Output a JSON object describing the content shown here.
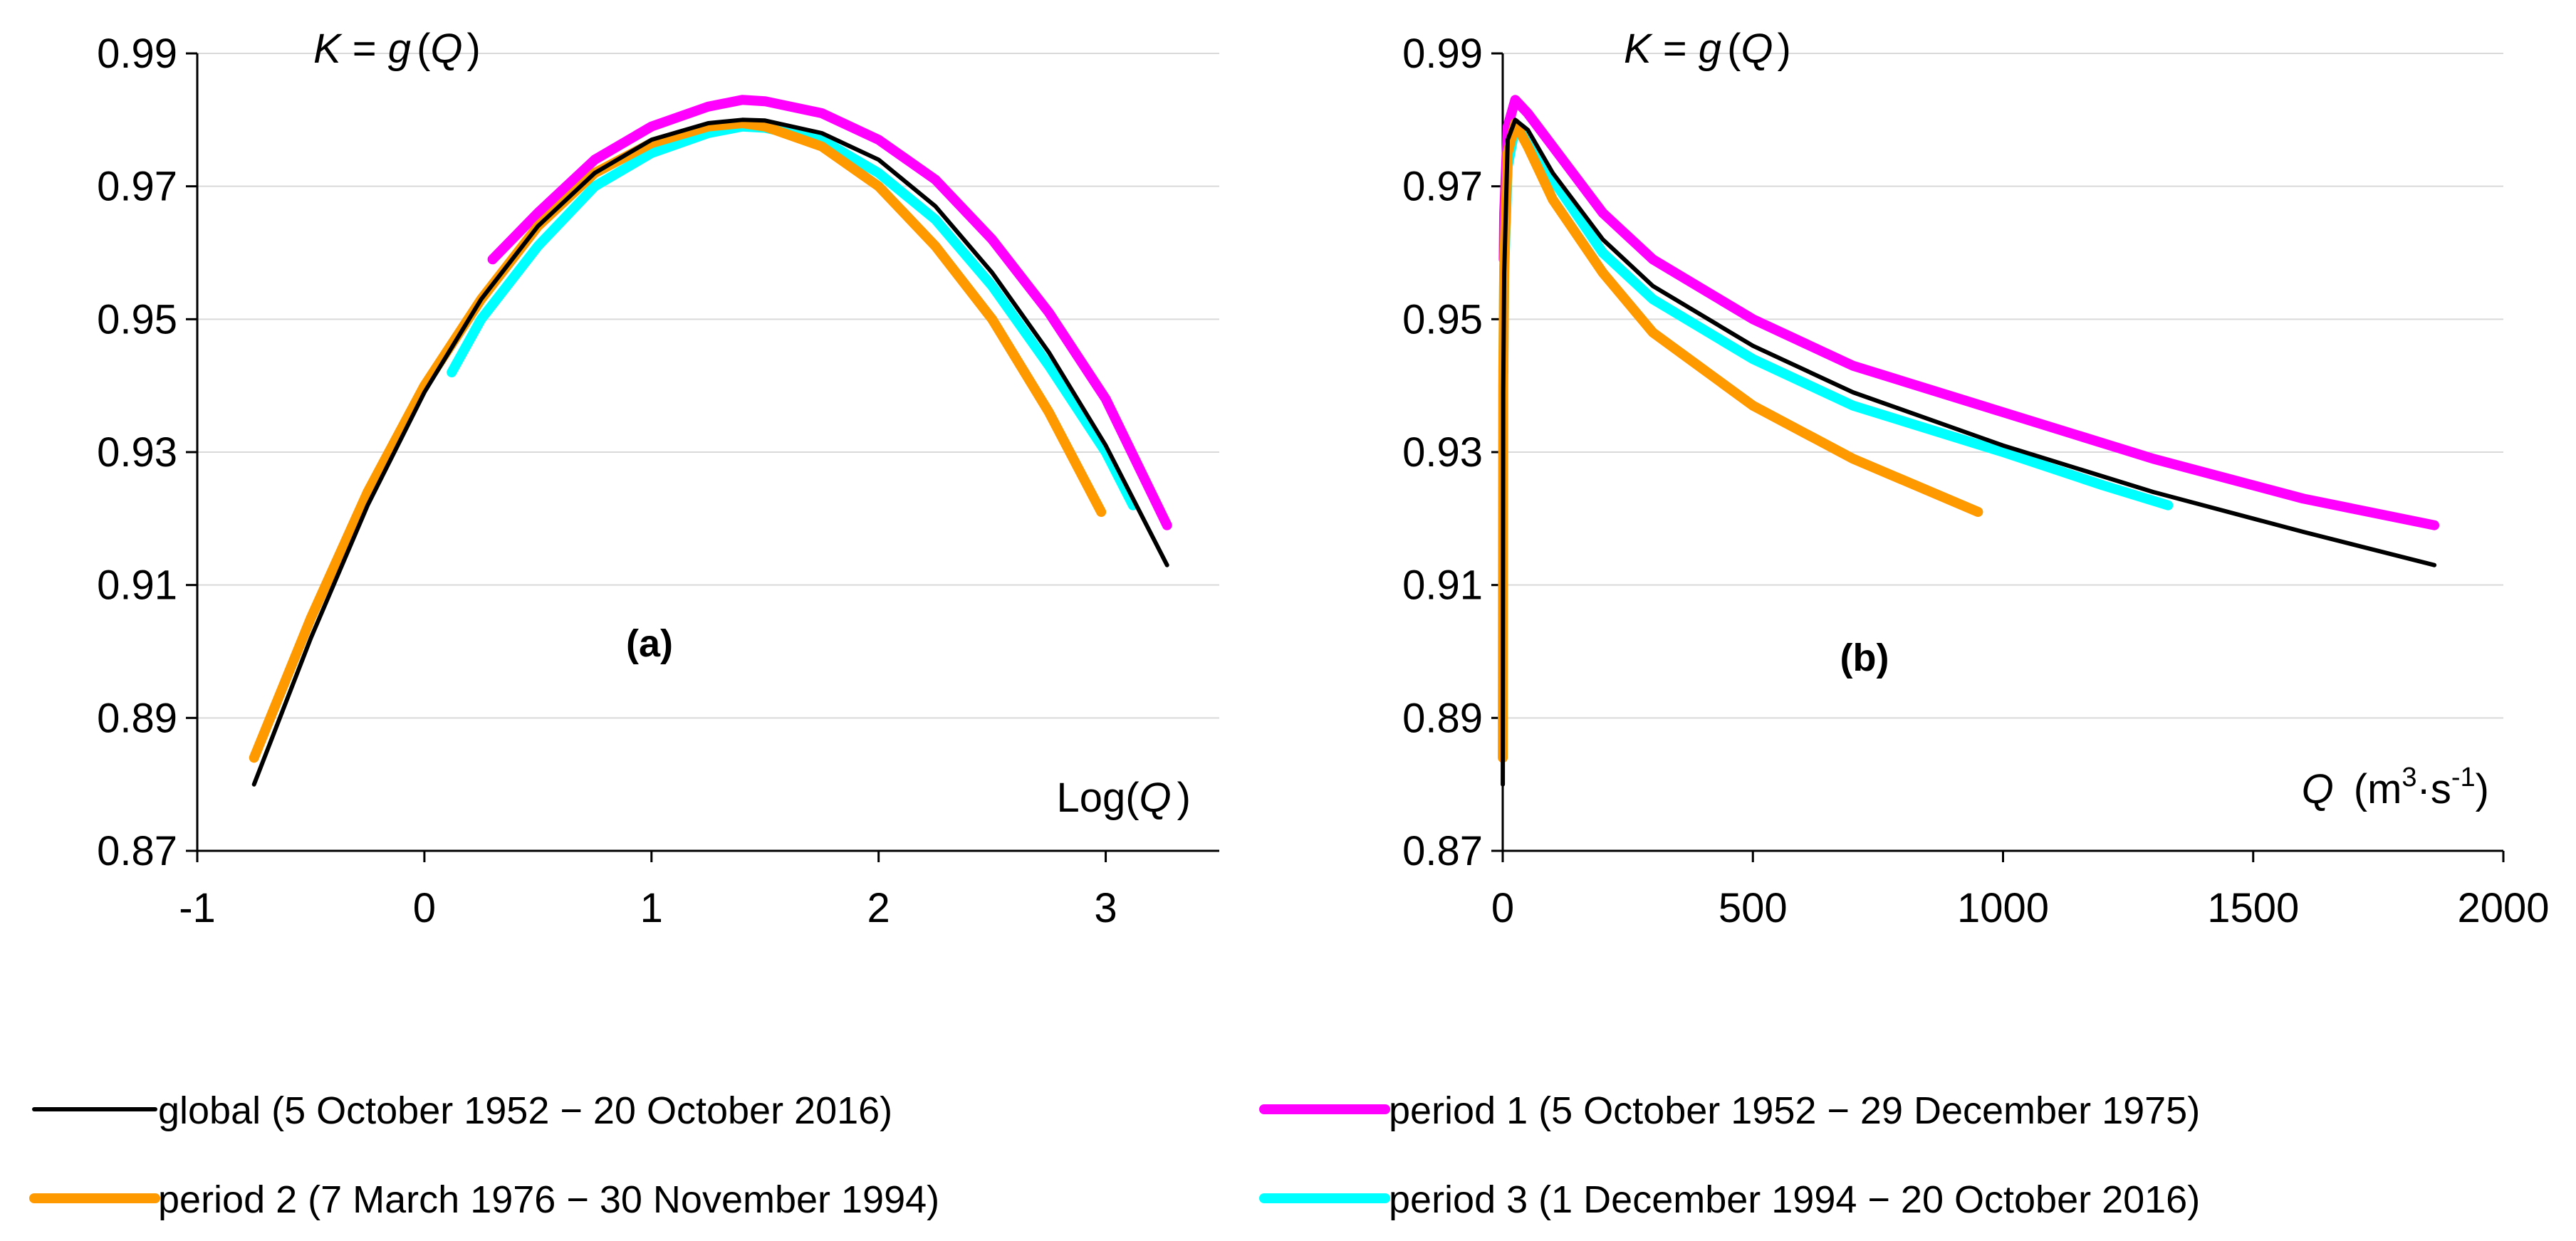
{
  "chart_data": [
    {
      "type": "line",
      "panel_label": "(a)",
      "formula": {
        "k": "K",
        "eq": " = ",
        "g": "g",
        "open": "(",
        "q": "Q",
        "close": ")"
      },
      "xlabel": {
        "prefix": "Log(",
        "var": "Q",
        "suffix": ")"
      },
      "xlim": [
        -1,
        3.5
      ],
      "ylim": [
        0.87,
        0.99
      ],
      "x_ticks": [
        -1,
        0,
        1,
        2,
        3
      ],
      "x_tick_labels": [
        "-1",
        "0",
        "1",
        "2",
        "3"
      ],
      "y_ticks": [
        0.87,
        0.89,
        0.91,
        0.93,
        0.95,
        0.97,
        0.99
      ],
      "y_tick_labels": [
        "0.87",
        "0.89",
        "0.91",
        "0.93",
        "0.95",
        "0.97",
        "0.99"
      ],
      "grid": true,
      "series": [
        {
          "key": "global",
          "name": "global (5 October 1952 − 20 October 2016)",
          "color": "#000000",
          "x": [
            -0.75,
            -0.5,
            -0.25,
            0,
            0.25,
            0.5,
            0.75,
            1,
            1.25,
            1.4,
            1.5,
            1.75,
            2,
            2.25,
            2.5,
            2.75,
            3,
            3.27
          ],
          "y": [
            0.88,
            0.902,
            0.922,
            0.939,
            0.953,
            0.964,
            0.972,
            0.977,
            0.9795,
            0.98,
            0.9799,
            0.978,
            0.974,
            0.967,
            0.957,
            0.945,
            0.931,
            0.913
          ]
        },
        {
          "key": "period1",
          "name": "period 1 (5 October 1952 − 29 December 1975)",
          "color": "#FF00FF",
          "x": [
            0.3,
            0.5,
            0.75,
            1,
            1.25,
            1.4,
            1.5,
            1.75,
            2,
            2.25,
            2.5,
            2.75,
            3,
            3.27
          ],
          "y": [
            0.959,
            0.966,
            0.974,
            0.979,
            0.982,
            0.983,
            0.9828,
            0.981,
            0.977,
            0.971,
            0.962,
            0.951,
            0.938,
            0.919
          ]
        },
        {
          "key": "period2",
          "name": "period 2 (7 March 1976 − 30 November 1994)",
          "color": "#FF9900",
          "x": [
            -0.75,
            -0.5,
            -0.25,
            0,
            0.25,
            0.5,
            0.75,
            1,
            1.25,
            1.4,
            1.5,
            1.75,
            2,
            2.25,
            2.5,
            2.75,
            2.98
          ],
          "y": [
            0.884,
            0.905,
            0.924,
            0.94,
            0.953,
            0.964,
            0.972,
            0.9765,
            0.979,
            0.9795,
            0.979,
            0.976,
            0.97,
            0.961,
            0.95,
            0.936,
            0.921
          ]
        },
        {
          "key": "period3",
          "name": "period 3 (1 December 1994 − 20 October 2016)",
          "color": "#00FFFF",
          "x": [
            0.12,
            0.25,
            0.5,
            0.75,
            1,
            1.25,
            1.4,
            1.5,
            1.75,
            2,
            2.25,
            2.5,
            2.75,
            3,
            3.12
          ],
          "y": [
            0.942,
            0.95,
            0.961,
            0.97,
            0.975,
            0.978,
            0.979,
            0.9788,
            0.977,
            0.972,
            0.965,
            0.955,
            0.943,
            0.93,
            0.922
          ]
        }
      ]
    },
    {
      "type": "line",
      "panel_label": "(b)",
      "formula": {
        "k": "K",
        "eq": " = ",
        "g": "g",
        "open": "(",
        "q": "Q",
        "close": ")"
      },
      "xlabel": {
        "var": "Q",
        "unit_prefix": "(m",
        "exp1": "3",
        "mid": "·s",
        "exp2": "-1",
        "suffix": ")"
      },
      "xlim": [
        0,
        2000
      ],
      "ylim": [
        0.87,
        0.99
      ],
      "x_ticks": [
        0,
        500,
        1000,
        1500,
        2000
      ],
      "x_tick_labels": [
        "0",
        "500",
        "1000",
        "1500",
        "2000"
      ],
      "y_ticks": [
        0.87,
        0.89,
        0.91,
        0.93,
        0.95,
        0.97,
        0.99
      ],
      "y_tick_labels": [
        "0.87",
        "0.89",
        "0.91",
        "0.93",
        "0.95",
        "0.97",
        "0.99"
      ],
      "grid": true,
      "series": [
        {
          "key": "global",
          "name": "global (5 October 1952 − 20 October 2016)",
          "color": "#000000",
          "x": [
            0.18,
            1,
            3,
            10,
            25,
            50,
            100,
            200,
            300,
            500,
            700,
            1000,
            1300,
            1600,
            1862
          ],
          "y": [
            0.88,
            0.939,
            0.957,
            0.977,
            0.98,
            0.9785,
            0.972,
            0.962,
            0.955,
            0.946,
            0.939,
            0.931,
            0.924,
            0.918,
            0.913
          ]
        },
        {
          "key": "period1",
          "name": "period 1 (5 October 1952 − 29 December 1975)",
          "color": "#FF00FF",
          "x": [
            2,
            3,
            10,
            25,
            50,
            100,
            200,
            300,
            500,
            700,
            1000,
            1300,
            1600,
            1862
          ],
          "y": [
            0.959,
            0.966,
            0.979,
            0.983,
            0.981,
            0.976,
            0.966,
            0.959,
            0.95,
            0.943,
            0.936,
            0.929,
            0.923,
            0.919
          ]
        },
        {
          "key": "period2",
          "name": "period 2 (7 March 1976 − 30 November 1994)",
          "color": "#FF9900",
          "x": [
            0.18,
            1,
            3,
            10,
            25,
            50,
            100,
            200,
            300,
            500,
            700,
            950
          ],
          "y": [
            0.884,
            0.94,
            0.958,
            0.975,
            0.9795,
            0.976,
            0.968,
            0.957,
            0.948,
            0.937,
            0.929,
            0.921
          ]
        },
        {
          "key": "period3",
          "name": "period 3 (1 December 1994 − 20 October 2016)",
          "color": "#00FFFF",
          "x": [
            1.3,
            3,
            10,
            25,
            50,
            100,
            200,
            300,
            500,
            700,
            1000,
            1200,
            1330
          ],
          "y": [
            0.942,
            0.957,
            0.973,
            0.979,
            0.977,
            0.971,
            0.96,
            0.953,
            0.944,
            0.937,
            0.93,
            0.925,
            0.922
          ]
        }
      ]
    }
  ]
}
